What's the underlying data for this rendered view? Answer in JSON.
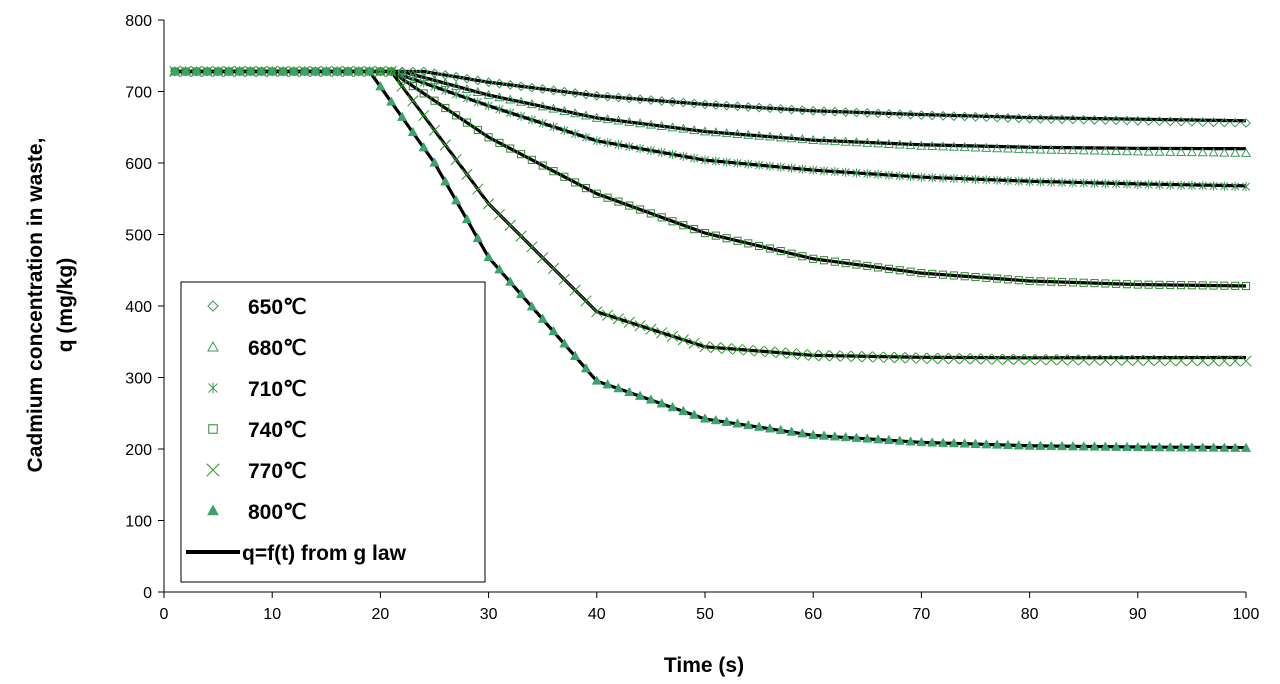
{
  "chart_data": {
    "type": "scatter",
    "xlabel": "Time (s)",
    "ylabel_line1": "Cadmium concentration in waste,",
    "ylabel_line2": "q (mg/kg)",
    "xlim": [
      0,
      100
    ],
    "ylim": [
      0,
      800
    ],
    "x_ticks": [
      0,
      10,
      20,
      30,
      40,
      50,
      60,
      70,
      80,
      90,
      100
    ],
    "y_ticks": [
      0,
      100,
      200,
      300,
      400,
      500,
      600,
      700,
      800
    ],
    "grid": false,
    "legend_position": "bottom-left",
    "initial_value": 728,
    "series": [
      {
        "name": "650℃",
        "marker": "diamond-open",
        "color": "#3a9a5a",
        "start_time": 24,
        "points": [
          [
            24,
            728
          ],
          [
            30,
            713
          ],
          [
            40,
            694
          ],
          [
            50,
            682
          ],
          [
            60,
            673
          ],
          [
            70,
            667
          ],
          [
            80,
            662
          ],
          [
            90,
            659
          ],
          [
            100,
            656
          ]
        ]
      },
      {
        "name": "680℃",
        "marker": "triangle-open",
        "color": "#3a9a5a",
        "start_time": 22,
        "points": [
          [
            22,
            728
          ],
          [
            30,
            695
          ],
          [
            40,
            663
          ],
          [
            50,
            644
          ],
          [
            60,
            632
          ],
          [
            70,
            624
          ],
          [
            80,
            619
          ],
          [
            90,
            616
          ],
          [
            100,
            614
          ]
        ]
      },
      {
        "name": "710℃",
        "marker": "asterisk",
        "color": "#3a9a5a",
        "start_time": 21,
        "points": [
          [
            21,
            728
          ],
          [
            30,
            680
          ],
          [
            40,
            631
          ],
          [
            50,
            604
          ],
          [
            60,
            590
          ],
          [
            70,
            580
          ],
          [
            80,
            574
          ],
          [
            90,
            570
          ],
          [
            100,
            567
          ]
        ]
      },
      {
        "name": "740℃",
        "marker": "square-open",
        "color": "#2e8b2e",
        "start_time": 21,
        "points": [
          [
            21,
            728
          ],
          [
            30,
            636
          ],
          [
            40,
            557
          ],
          [
            50,
            502
          ],
          [
            60,
            466
          ],
          [
            70,
            446
          ],
          [
            80,
            435
          ],
          [
            90,
            430
          ],
          [
            100,
            428
          ]
        ]
      },
      {
        "name": "770℃",
        "marker": "x",
        "color": "#2e9a2e",
        "start_time": 21,
        "points": [
          [
            21,
            728
          ],
          [
            30,
            543
          ],
          [
            40,
            392
          ],
          [
            50,
            343
          ],
          [
            60,
            331
          ],
          [
            70,
            327
          ],
          [
            80,
            325
          ],
          [
            90,
            324
          ],
          [
            100,
            323
          ]
        ]
      },
      {
        "name": "800℃",
        "marker": "triangle-filled",
        "color": "#3aa26a",
        "start_time": 19,
        "points": [
          [
            19,
            728
          ],
          [
            25,
            600
          ],
          [
            30,
            468
          ],
          [
            40,
            295
          ],
          [
            50,
            242
          ],
          [
            60,
            219
          ],
          [
            70,
            209
          ],
          [
            80,
            204
          ],
          [
            90,
            202
          ],
          [
            100,
            201
          ]
        ]
      }
    ],
    "model_lines": {
      "name": "q=f(t) from g law",
      "color": "#000000",
      "finals": [
        659,
        620,
        568,
        428,
        328,
        202
      ]
    }
  }
}
